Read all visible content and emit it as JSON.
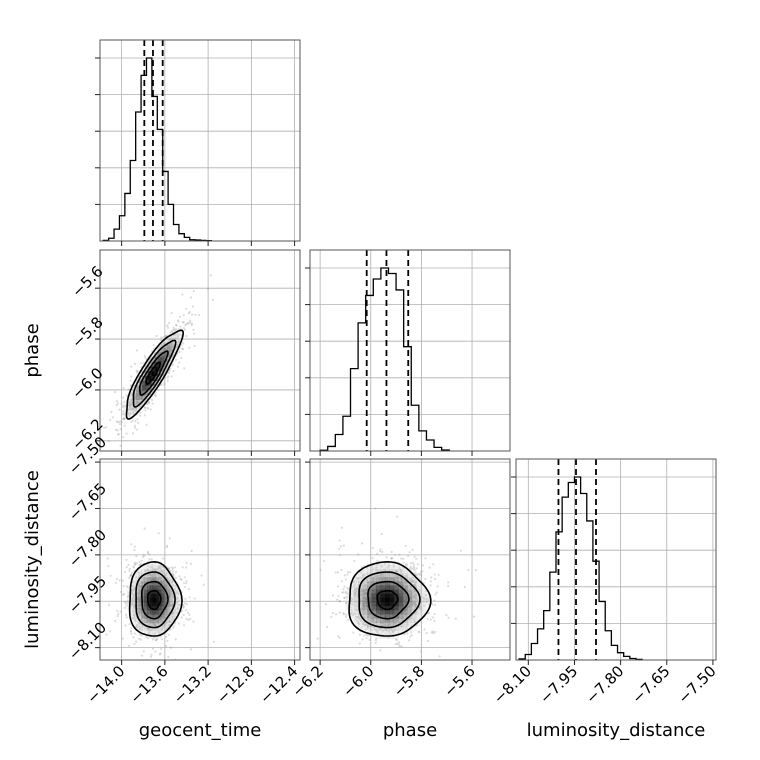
{
  "chart_data": {
    "type": "corner",
    "parameters": [
      "geocent_time",
      "phase",
      "luminosity_distance"
    ],
    "axes": {
      "geocent_time": {
        "label": "geocent_time",
        "lim": [
          -14.2,
          -12.35
        ],
        "ticks": [
          -14.0,
          -13.6,
          -13.2,
          -12.8,
          -12.4
        ],
        "tick_labels": [
          "−14.0",
          "−13.6",
          "−13.2",
          "−12.8",
          "−12.4"
        ]
      },
      "phase": {
        "label": "phase",
        "lim": [
          -6.24,
          -5.45
        ],
        "ticks": [
          -6.2,
          -6.0,
          -5.8,
          -5.6
        ],
        "tick_labels": [
          "−6.2",
          "−6.0",
          "−5.8",
          "−5.6"
        ]
      },
      "luminosity_distance": {
        "label": "luminosity_distance",
        "lim": [
          -8.14,
          -7.49
        ],
        "ticks": [
          -8.1,
          -7.95,
          -7.8,
          -7.65,
          -7.5
        ],
        "tick_labels": [
          "−8.10",
          "−7.95",
          "−7.80",
          "−7.65",
          "−7.50"
        ]
      }
    },
    "histograms": {
      "geocent_time": {
        "bin_edges": [
          -14.17,
          -14.12,
          -14.07,
          -14.02,
          -13.97,
          -13.92,
          -13.87,
          -13.82,
          -13.77,
          -13.72,
          -13.67,
          -13.62,
          -13.57,
          -13.52,
          -13.47,
          -13.42,
          -13.37,
          -13.32,
          -13.27,
          -13.22,
          -13.17
        ],
        "counts": [
          0.3,
          1.5,
          6.5,
          13.8,
          26.0,
          44.0,
          70.5,
          90.5,
          100.0,
          79.0,
          61.0,
          38.0,
          20.0,
          9.0,
          4.0,
          2.0,
          0.7,
          0.5,
          0.3,
          0.2
        ],
        "quantiles": [
          -13.79,
          -13.71,
          -13.62
        ]
      },
      "phase": {
        "bin_edges": [
          -6.2,
          -6.17,
          -6.14,
          -6.11,
          -6.08,
          -6.05,
          -6.02,
          -5.99,
          -5.96,
          -5.93,
          -5.9,
          -5.87,
          -5.84,
          -5.81,
          -5.78,
          -5.75,
          -5.72,
          -5.69
        ],
        "counts": [
          0.4,
          2.5,
          9.0,
          19.0,
          45.0,
          70.0,
          85.0,
          94.0,
          100.0,
          97.0,
          88.0,
          57.0,
          25.0,
          11.0,
          6.0,
          2.0,
          0.5
        ],
        "quantiles": [
          -6.016,
          -5.938,
          -5.852
        ]
      },
      "luminosity_distance": {
        "bin_edges": [
          -8.13,
          -8.11,
          -8.09,
          -8.07,
          -8.05,
          -8.03,
          -8.01,
          -7.99,
          -7.97,
          -7.95,
          -7.93,
          -7.91,
          -7.89,
          -7.87,
          -7.85,
          -7.83,
          -7.81,
          -7.79,
          -7.77,
          -7.75,
          -7.73
        ],
        "counts": [
          0.6,
          3.0,
          9.0,
          17.0,
          27.0,
          48.0,
          70.0,
          89.0,
          97.0,
          100.0,
          91.0,
          76.0,
          54.0,
          32.0,
          16.0,
          8.0,
          4.0,
          2.0,
          0.8,
          0.3
        ],
        "quantiles": [
          -8.002,
          -7.945,
          -7.88
        ]
      }
    },
    "panels_2d": [
      {
        "x": "geocent_time",
        "y": "phase",
        "mean": [
          -13.71,
          -5.935
        ],
        "sd": [
          0.13,
          0.085
        ],
        "rho": 0.88,
        "contour_levels": [
          0.5,
          1.0,
          1.5,
          2.0
        ],
        "n_points": 1100
      },
      {
        "x": "geocent_time",
        "y": "luminosity_distance",
        "mean": [
          -13.7,
          -7.945
        ],
        "sd": [
          0.12,
          0.06
        ],
        "rho": 0.0,
        "contour_levels": [
          0.5,
          1.0,
          1.5,
          2.0
        ],
        "n_points": 1100
      },
      {
        "x": "phase",
        "y": "luminosity_distance",
        "mean": [
          -5.935,
          -7.945
        ],
        "sd": [
          0.08,
          0.06
        ],
        "rho": 0.0,
        "contour_levels": [
          0.5,
          1.0,
          1.5,
          2.0
        ],
        "n_points": 1100
      }
    ],
    "grid": true,
    "title": ""
  }
}
